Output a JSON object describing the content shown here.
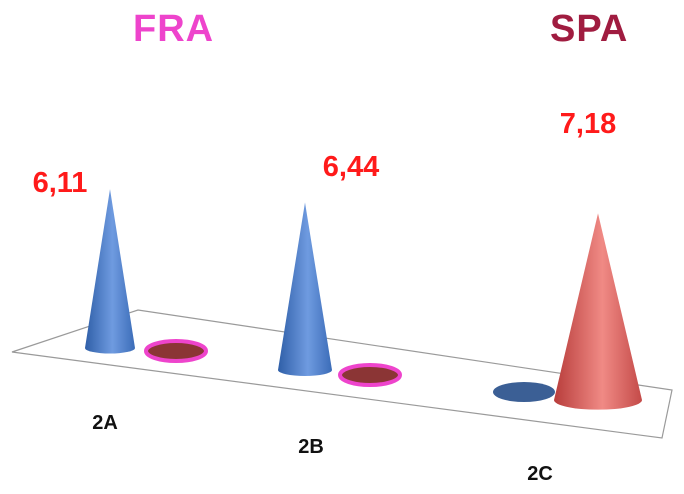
{
  "chart_data": {
    "type": "bar",
    "subtype": "3d-cone",
    "categories": [
      "2A",
      "2B",
      "2C"
    ],
    "series": [
      {
        "name": "FRA",
        "values": [
          6.11,
          6.44,
          null
        ],
        "color": "#4a7cc9"
      },
      {
        "name": "SPA",
        "values": [
          null,
          null,
          7.18
        ],
        "color": "#d95a58"
      }
    ],
    "value_labels": [
      "6,11",
      "6,44",
      "7,18"
    ],
    "legend": [
      {
        "label": "FRA",
        "color": "#ee44cc"
      },
      {
        "label": "SPA",
        "color": "#a01c40"
      }
    ],
    "label_color": "#ff1a1a",
    "legend_placement": "top",
    "grid": false
  }
}
